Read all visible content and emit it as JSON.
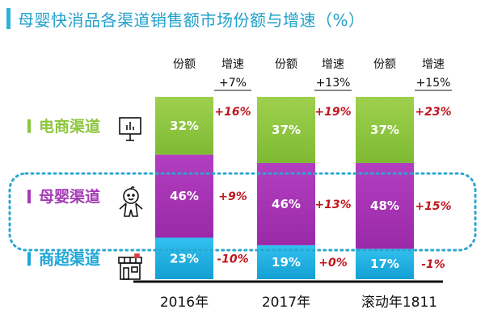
{
  "title": "母婴快消品各渠道销售额市场份额与增速（%）",
  "headers": {
    "share": "份额",
    "growth": "增速"
  },
  "chart_data": {
    "type": "bar",
    "stacked": true,
    "categories": [
      "2016年",
      "2017年",
      "滚动年1811"
    ],
    "total_growth": [
      "+7%",
      "+13%",
      "+15%"
    ],
    "series": [
      {
        "name": "电商渠道",
        "color": "#8cc63e",
        "label_color": "#8cc63e",
        "icon": "presentation-board-icon",
        "values": [
          32,
          37,
          37
        ],
        "value_labels": [
          "32%",
          "37%",
          "37%"
        ],
        "growth": [
          "+16%",
          "+19%",
          "+23%"
        ]
      },
      {
        "name": "母婴渠道",
        "color": "#a533b3",
        "label_color": "#a43cb5",
        "icon": "baby-icon",
        "values": [
          46,
          46,
          48
        ],
        "value_labels": [
          "46%",
          "46%",
          "48%"
        ],
        "growth": [
          "+9%",
          "+13%",
          "+15%"
        ]
      },
      {
        "name": "商超渠道",
        "color": "#1fb3e6",
        "label_color": "#1ea6d6",
        "icon": "store-icon",
        "values": [
          23,
          19,
          17
        ],
        "value_labels": [
          "23%",
          "19%",
          "17%"
        ],
        "growth": [
          "-10%",
          "+0%",
          "-1%"
        ]
      }
    ],
    "legend": "left",
    "grid": false
  }
}
